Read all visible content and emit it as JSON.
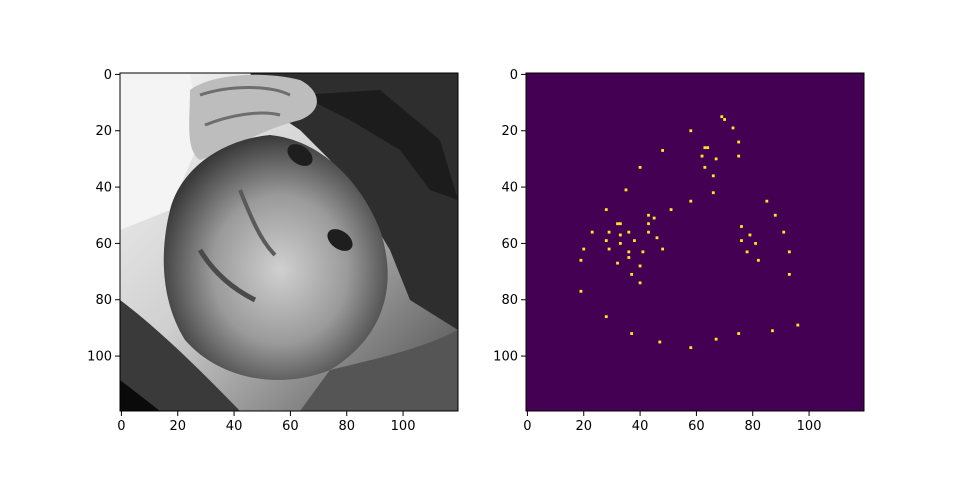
{
  "colors": {
    "background": "#ffffff",
    "axes_spine": "#000000",
    "heatmap_background": "#440154",
    "heatmap_point": "#fde725"
  },
  "chart_data": [
    {
      "type": "image",
      "panel": "left",
      "description_hidden": true,
      "colormap": "gray",
      "xlim": [
        0,
        119
      ],
      "ylim": [
        119,
        0
      ],
      "xticks": [
        0,
        20,
        40,
        60,
        80,
        100
      ],
      "yticks": [
        0,
        20,
        40,
        60,
        80,
        100
      ],
      "xtick_labels": [
        "0",
        "20",
        "40",
        "60",
        "80",
        "100"
      ],
      "ytick_labels": [
        "0",
        "20",
        "40",
        "60",
        "80",
        "100"
      ],
      "title": "",
      "xlabel": "",
      "ylabel": ""
    },
    {
      "type": "heatmap",
      "panel": "right",
      "colormap": "viridis",
      "xlim": [
        0,
        119
      ],
      "ylim": [
        119,
        0
      ],
      "xticks": [
        0,
        20,
        40,
        60,
        80,
        100
      ],
      "yticks": [
        0,
        20,
        40,
        60,
        80,
        100
      ],
      "xtick_labels": [
        "0",
        "20",
        "40",
        "60",
        "80",
        "100"
      ],
      "ytick_labels": [
        "0",
        "20",
        "40",
        "60",
        "80",
        "100"
      ],
      "title": "",
      "xlabel": "",
      "ylabel": "",
      "points": [
        [
          69,
          15
        ],
        [
          70,
          16
        ],
        [
          73,
          19
        ],
        [
          58,
          20
        ],
        [
          75,
          24
        ],
        [
          63,
          26
        ],
        [
          64,
          26
        ],
        [
          48,
          27
        ],
        [
          62,
          29
        ],
        [
          75,
          29
        ],
        [
          67,
          30
        ],
        [
          63,
          33
        ],
        [
          40,
          33
        ],
        [
          66,
          36
        ],
        [
          35,
          41
        ],
        [
          66,
          42
        ],
        [
          85,
          45
        ],
        [
          58,
          45
        ],
        [
          51,
          48
        ],
        [
          28,
          48
        ],
        [
          88,
          50
        ],
        [
          43,
          50
        ],
        [
          45,
          51
        ],
        [
          43,
          53
        ],
        [
          32,
          53
        ],
        [
          33,
          53
        ],
        [
          29,
          56
        ],
        [
          23,
          56
        ],
        [
          36,
          56
        ],
        [
          43,
          56
        ],
        [
          33,
          57
        ],
        [
          91,
          56
        ],
        [
          76,
          54
        ],
        [
          79,
          57
        ],
        [
          46,
          58
        ],
        [
          38,
          59
        ],
        [
          28,
          59
        ],
        [
          33,
          60
        ],
        [
          76,
          59
        ],
        [
          81,
          60
        ],
        [
          20,
          62
        ],
        [
          48,
          62
        ],
        [
          29,
          62
        ],
        [
          78,
          63
        ],
        [
          93,
          63
        ],
        [
          36,
          63
        ],
        [
          41,
          63
        ],
        [
          19,
          66
        ],
        [
          36,
          65
        ],
        [
          82,
          66
        ],
        [
          32,
          67
        ],
        [
          40,
          68
        ],
        [
          37,
          71
        ],
        [
          93,
          71
        ],
        [
          40,
          74
        ],
        [
          19,
          77
        ],
        [
          28,
          86
        ],
        [
          96,
          89
        ],
        [
          87,
          91
        ],
        [
          37,
          92
        ],
        [
          75,
          92
        ],
        [
          67,
          94
        ],
        [
          47,
          95
        ],
        [
          58,
          97
        ]
      ]
    }
  ]
}
